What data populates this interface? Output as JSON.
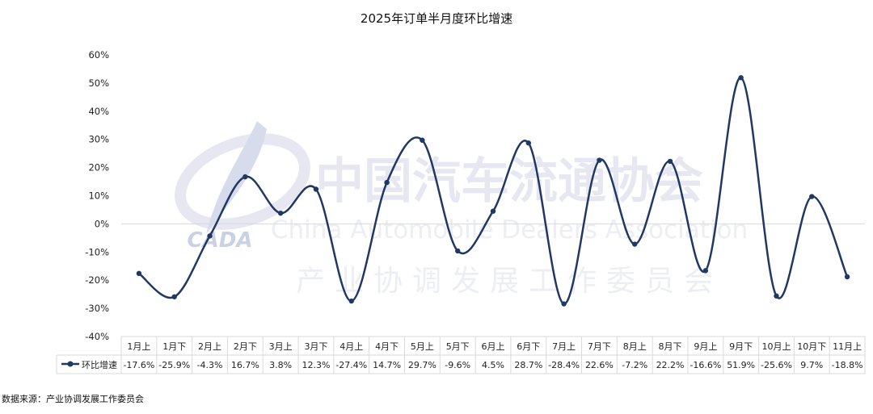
{
  "chart_data": {
    "type": "line",
    "title": "2025年订单半月度环比增速",
    "categories": [
      "1月上",
      "1月下",
      "2月上",
      "2月下",
      "3月上",
      "3月下",
      "4月上",
      "4月下",
      "5月上",
      "5月下",
      "6月上",
      "6月下",
      "7月上",
      "7月下",
      "8月上",
      "8月下",
      "9月上",
      "9月下",
      "10月上",
      "10月下",
      "11月上"
    ],
    "series": [
      {
        "name": "环比增速",
        "values": [
          -17.6,
          -25.9,
          -4.3,
          16.7,
          3.8,
          12.3,
          -27.4,
          14.7,
          29.7,
          -9.6,
          4.5,
          28.7,
          -28.4,
          22.6,
          -7.2,
          22.2,
          -16.6,
          51.9,
          -25.6,
          9.7,
          -18.8
        ],
        "labels": [
          "-17.6%",
          "-25.9%",
          "-4.3%",
          "16.7%",
          "3.8%",
          "12.3%",
          "-27.4%",
          "14.7%",
          "29.7%",
          "-9.6%",
          "4.5%",
          "28.7%",
          "-28.4%",
          "22.6%",
          "-7.2%",
          "22.2%",
          "-16.6%",
          "51.9%",
          "-25.6%",
          "9.7%",
          "-18.8%"
        ],
        "color": "#1f3864"
      }
    ],
    "ylim": [
      -40,
      60
    ],
    "yticks": [
      -40,
      -30,
      -20,
      -10,
      0,
      10,
      20,
      30,
      40,
      50,
      60
    ],
    "ytick_labels": [
      "-40%",
      "-30%",
      "-20%",
      "-10%",
      "0%",
      "10%",
      "20%",
      "30%",
      "40%",
      "50%",
      "60%"
    ],
    "grid": false,
    "legend": "data-table-left",
    "smooth": true
  },
  "watermark": {
    "cn_name": "中国汽车流通协会",
    "en_name": "China Automobile Dealers Association",
    "committee": "产业协调发展工作委员会",
    "logo_text": "CADA"
  },
  "source_note": "数据来源：产业协调发展工作委员会",
  "colors": {
    "line": "#1f3864",
    "axis": "#d9d9d9",
    "watermark": "#e6e7f1"
  }
}
